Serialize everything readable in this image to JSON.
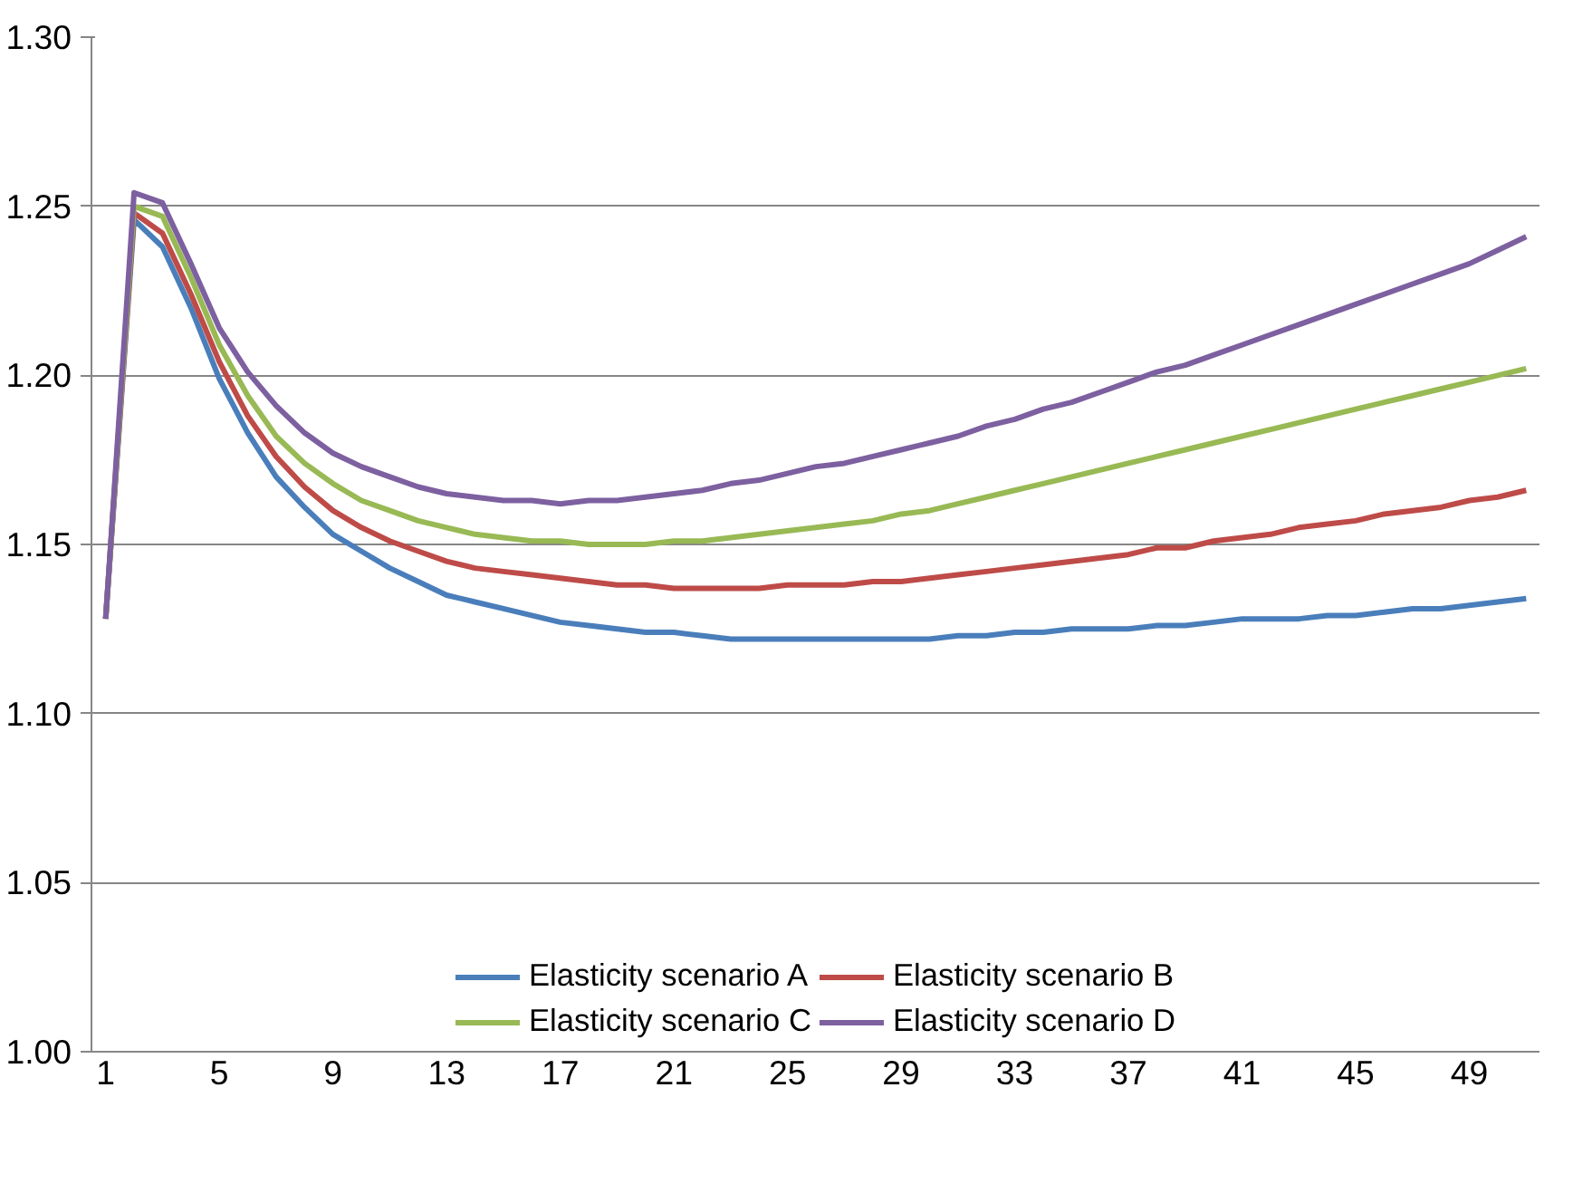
{
  "chart_data": {
    "type": "line",
    "categories": [
      "1",
      null,
      null,
      null,
      "5",
      null,
      null,
      null,
      "9",
      null,
      null,
      null,
      "13",
      null,
      null,
      null,
      "17",
      null,
      null,
      null,
      "21",
      null,
      null,
      null,
      "25",
      null,
      null,
      null,
      "29",
      null,
      null,
      null,
      "33",
      null,
      null,
      null,
      "37",
      null,
      null,
      null,
      "41",
      null,
      null,
      null,
      "45",
      null,
      null,
      null,
      "49",
      null,
      null
    ],
    "series": [
      {
        "name": "Elasticity scenario A",
        "color": "#4a7ebb",
        "values": [
          1.128,
          1.246,
          1.238,
          1.22,
          1.199,
          1.183,
          1.17,
          1.161,
          1.153,
          1.148,
          1.143,
          1.139,
          1.135,
          1.133,
          1.131,
          1.129,
          1.127,
          1.126,
          1.125,
          1.124,
          1.124,
          1.123,
          1.122,
          1.122,
          1.122,
          1.122,
          1.122,
          1.122,
          1.122,
          1.122,
          1.123,
          1.123,
          1.124,
          1.124,
          1.125,
          1.125,
          1.125,
          1.126,
          1.126,
          1.127,
          1.128,
          1.128,
          1.128,
          1.129,
          1.129,
          1.13,
          1.131,
          1.131,
          1.132,
          1.133,
          1.134
        ]
      },
      {
        "name": "Elasticity scenario B",
        "color": "#be4b48",
        "values": [
          1.128,
          1.248,
          1.242,
          1.224,
          1.204,
          1.188,
          1.176,
          1.167,
          1.16,
          1.155,
          1.151,
          1.148,
          1.145,
          1.143,
          1.142,
          1.141,
          1.14,
          1.139,
          1.138,
          1.138,
          1.137,
          1.137,
          1.137,
          1.137,
          1.138,
          1.138,
          1.138,
          1.139,
          1.139,
          1.14,
          1.141,
          1.142,
          1.143,
          1.144,
          1.145,
          1.146,
          1.147,
          1.149,
          1.149,
          1.151,
          1.152,
          1.153,
          1.155,
          1.156,
          1.157,
          1.159,
          1.16,
          1.161,
          1.163,
          1.164,
          1.166
        ]
      },
      {
        "name": "Elasticity scenario C",
        "color": "#98b954",
        "values": [
          1.128,
          1.25,
          1.247,
          1.229,
          1.209,
          1.194,
          1.182,
          1.174,
          1.168,
          1.163,
          1.16,
          1.157,
          1.155,
          1.153,
          1.152,
          1.151,
          1.151,
          1.15,
          1.15,
          1.15,
          1.151,
          1.151,
          1.152,
          1.153,
          1.154,
          1.155,
          1.156,
          1.157,
          1.159,
          1.16,
          1.162,
          1.164,
          1.166,
          1.168,
          1.17,
          1.172,
          1.174,
          1.176,
          1.178,
          1.18,
          1.182,
          1.184,
          1.186,
          1.188,
          1.19,
          1.192,
          1.194,
          1.196,
          1.198,
          1.2,
          1.202
        ]
      },
      {
        "name": "Elasticity scenario D",
        "color": "#7d60a0",
        "values": [
          1.128,
          1.254,
          1.251,
          1.233,
          1.214,
          1.201,
          1.191,
          1.183,
          1.177,
          1.173,
          1.17,
          1.167,
          1.165,
          1.164,
          1.163,
          1.163,
          1.162,
          1.163,
          1.163,
          1.164,
          1.165,
          1.166,
          1.168,
          1.169,
          1.171,
          1.173,
          1.174,
          1.176,
          1.178,
          1.18,
          1.182,
          1.185,
          1.187,
          1.19,
          1.192,
          1.195,
          1.198,
          1.201,
          1.203,
          1.206,
          1.209,
          1.212,
          1.215,
          1.218,
          1.221,
          1.224,
          1.227,
          1.23,
          1.233,
          1.237,
          1.241
        ]
      }
    ],
    "ylim": [
      1.0,
      1.3
    ],
    "yticks": [
      {
        "value": 1.0,
        "label": "1.00"
      },
      {
        "value": 1.05,
        "label": "1.05"
      },
      {
        "value": 1.1,
        "label": "1.10"
      },
      {
        "value": 1.15,
        "label": "1.15"
      },
      {
        "value": 1.2,
        "label": "1.20"
      },
      {
        "value": 1.25,
        "label": "1.25"
      },
      {
        "value": 1.3,
        "label": "1.30"
      }
    ],
    "grid": "y",
    "legend": "bottom"
  }
}
